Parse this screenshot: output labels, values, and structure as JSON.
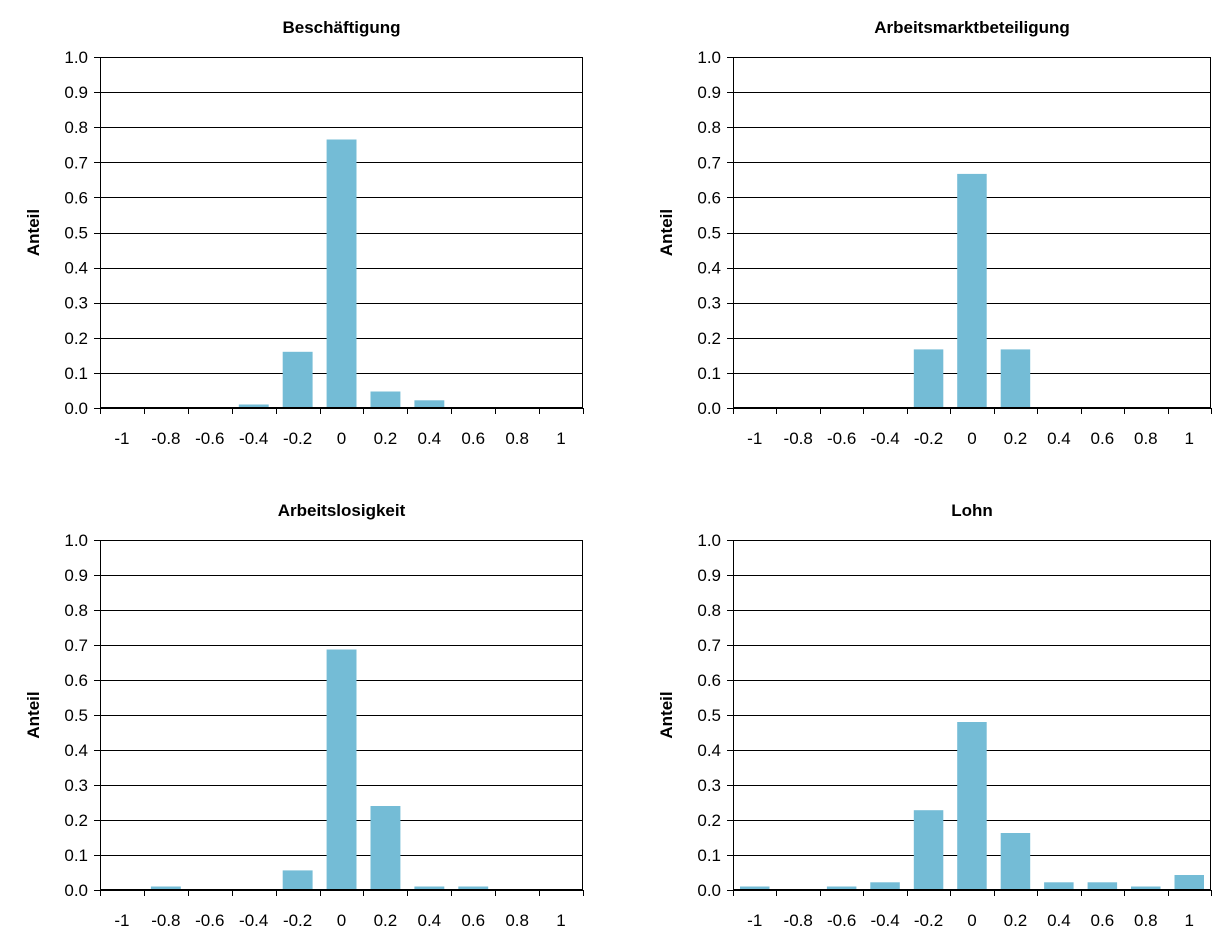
{
  "chart_data": [
    {
      "type": "bar",
      "title": "Beschäftigung",
      "ylabel": "Anteil",
      "xlabel": "",
      "categories": [
        "-1",
        "-0.8",
        "-0.6",
        "-0.4",
        "-0.2",
        "0",
        "0.2",
        "0.4",
        "0.6",
        "0.8",
        "1"
      ],
      "values": [
        0,
        0,
        0,
        0.01,
        0.16,
        0.765,
        0.047,
        0.022,
        0,
        0,
        0
      ],
      "ylim": [
        0,
        1
      ],
      "yticks": [
        "0.0",
        "0.1",
        "0.2",
        "0.3",
        "0.4",
        "0.5",
        "0.6",
        "0.7",
        "0.8",
        "0.9",
        "1.0"
      ],
      "grid": true,
      "color": "#74bcd6"
    },
    {
      "type": "bar",
      "title": "Arbeitsmarktbeteiligung",
      "ylabel": "Anteil",
      "xlabel": "",
      "categories": [
        "-1",
        "-0.8",
        "-0.6",
        "-0.4",
        "-0.2",
        "0",
        "0.2",
        "0.4",
        "0.6",
        "0.8",
        "1"
      ],
      "values": [
        0,
        0,
        0,
        0,
        0.167,
        0.667,
        0.167,
        0,
        0,
        0,
        0
      ],
      "ylim": [
        0,
        1
      ],
      "yticks": [
        "0.0",
        "0.1",
        "0.2",
        "0.3",
        "0.4",
        "0.5",
        "0.6",
        "0.7",
        "0.8",
        "0.9",
        "1.0"
      ],
      "grid": true,
      "color": "#74bcd6"
    },
    {
      "type": "bar",
      "title": "Arbeitslosigkeit",
      "ylabel": "Anteil",
      "xlabel": "",
      "categories": [
        "-1",
        "-0.8",
        "-0.6",
        "-0.4",
        "-0.2",
        "0",
        "0.2",
        "0.4",
        "0.6",
        "0.8",
        "1"
      ],
      "values": [
        0,
        0.01,
        0,
        0,
        0.056,
        0.687,
        0.24,
        0.01,
        0.01,
        0,
        0
      ],
      "ylim": [
        0,
        1
      ],
      "yticks": [
        "0.0",
        "0.1",
        "0.2",
        "0.3",
        "0.4",
        "0.5",
        "0.6",
        "0.7",
        "0.8",
        "0.9",
        "1.0"
      ],
      "grid": true,
      "color": "#74bcd6"
    },
    {
      "type": "bar",
      "title": "Lohn",
      "ylabel": "Anteil",
      "xlabel": "",
      "categories": [
        "-1",
        "-0.8",
        "-0.6",
        "-0.4",
        "-0.2",
        "0",
        "0.2",
        "0.4",
        "0.6",
        "0.8",
        "1"
      ],
      "values": [
        0.01,
        0,
        0.01,
        0.022,
        0.228,
        0.48,
        0.163,
        0.022,
        0.022,
        0.01,
        0.043
      ],
      "ylim": [
        0,
        1
      ],
      "yticks": [
        "0.0",
        "0.1",
        "0.2",
        "0.3",
        "0.4",
        "0.5",
        "0.6",
        "0.7",
        "0.8",
        "0.9",
        "1.0"
      ],
      "grid": true,
      "color": "#74bcd6"
    }
  ]
}
